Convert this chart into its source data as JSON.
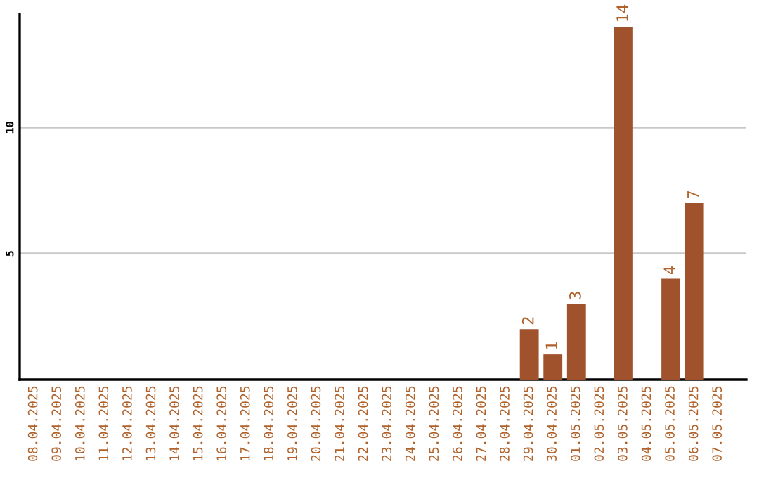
{
  "chart_data": {
    "type": "bar",
    "categories": [
      "08.04.2025",
      "09.04.2025",
      "10.04.2025",
      "11.04.2025",
      "12.04.2025",
      "13.04.2025",
      "14.04.2025",
      "15.04.2025",
      "16.04.2025",
      "17.04.2025",
      "18.04.2025",
      "19.04.2025",
      "20.04.2025",
      "21.04.2025",
      "22.04.2025",
      "23.04.2025",
      "24.04.2025",
      "25.04.2025",
      "26.04.2025",
      "27.04.2025",
      "28.04.2025",
      "29.04.2025",
      "30.04.2025",
      "01.05.2025",
      "02.05.2025",
      "03.05.2025",
      "04.05.2025",
      "05.05.2025",
      "06.05.2025",
      "07.05.2025"
    ],
    "values": [
      0,
      0,
      0,
      0,
      0,
      0,
      0,
      0,
      0,
      0,
      0,
      0,
      0,
      0,
      0,
      0,
      0,
      0,
      0,
      0,
      0,
      2,
      1,
      3,
      0,
      14,
      0,
      4,
      7,
      0
    ],
    "value_labels": [
      null,
      null,
      null,
      null,
      null,
      null,
      null,
      null,
      null,
      null,
      null,
      null,
      null,
      null,
      null,
      null,
      null,
      null,
      null,
      null,
      null,
      "2",
      "1",
      "3",
      null,
      "14",
      null,
      "4",
      "7",
      null
    ],
    "color": "#a0522d",
    "ylim": [
      0,
      14.5
    ],
    "yticks": [
      5,
      10
    ],
    "grid": "y"
  }
}
